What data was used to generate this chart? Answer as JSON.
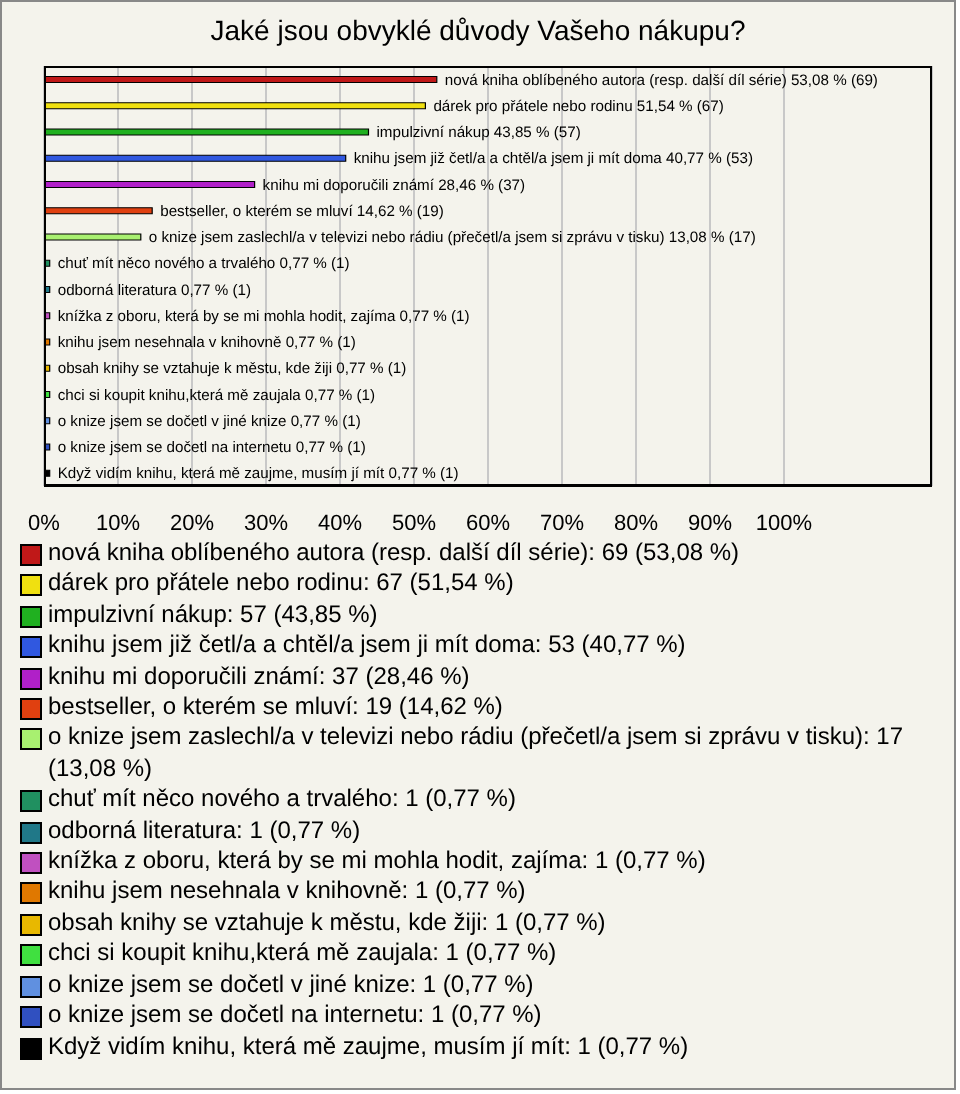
{
  "chart_data": [
    {
      "type": "bar",
      "orientation": "horizontal",
      "title": "Jaké jsou obvyklé důvody Vašeho nákupu?",
      "categories": [
        "nová kniha oblíbeného autora (resp. další díl série)",
        "dárek pro přátele nebo rodinu",
        "impulzivní nákup",
        "knihu jsem již četl/a a chtěl/a jsem ji mít doma",
        "knihu mi doporučili známí",
        "bestseller, o kterém se mluví",
        "o knize jsem zaslechl/a v televizi nebo rádiu (přečetl/a jsem si zprávu v tisku)",
        "chuť mít něco nového a trvalého",
        "odborná literatura",
        "knížka z oboru, která by se mi mohla hodit, zajíma",
        "knihu jsem nesehnala v knihovně",
        "obsah knihy se vztahuje k městu, kde žiji",
        "chci si koupit knihu,která mě zaujala",
        "o knize jsem se dočetl v jiné knize",
        "o knize jsem se dočetl na internetu",
        "Když vidím knihu, která mě zaujme, musím jí mít"
      ],
      "values": [
        53.08,
        51.54,
        43.85,
        40.77,
        28.46,
        14.62,
        13.08,
        0.77,
        0.77,
        0.77,
        0.77,
        0.77,
        0.77,
        0.77,
        0.77,
        0.77
      ],
      "value_labels": [
        "53,08 % (69)",
        "51,54 % (67)",
        "43,85 % (57)",
        "40,77 % (53)",
        "28,46 % (37)",
        "14,62 % (19)",
        "13,08 % (17)",
        "0,77 % (1)",
        "0,77 % (1)",
        "0,77 % (1)",
        "0,77 % (1)",
        "0,77 % (1)",
        "0,77 % (1)",
        "0,77 % (1)",
        "0,77 % (1)",
        "0,77 % (1)"
      ],
      "colors": [
        "#c01818",
        "#f0e010",
        "#20b020",
        "#3058e0",
        "#b020c8",
        "#e04010",
        "#a8f070",
        "#209060",
        "#207888",
        "#c050c0",
        "#e07800",
        "#e8b800",
        "#40e040",
        "#6090e0",
        "#3050c0",
        "#000000"
      ],
      "xlim": [
        0,
        120
      ],
      "xticks": [
        {
          "value": 0,
          "label": "0%"
        },
        {
          "value": 10,
          "label": "10%"
        },
        {
          "value": 20,
          "label": "20%"
        },
        {
          "value": 30,
          "label": "30%"
        },
        {
          "value": 40,
          "label": "40%"
        },
        {
          "value": 50,
          "label": "50%"
        },
        {
          "value": 60,
          "label": "60%"
        },
        {
          "value": 70,
          "label": "70%"
        },
        {
          "value": 80,
          "label": "80%"
        },
        {
          "value": 90,
          "label": "90%"
        },
        {
          "value": 100,
          "label": "100%"
        }
      ],
      "grid": "x"
    },
    {
      "type": "other",
      "annotations": [
        "nová kniha oblíbeného autora (resp. další díl série): 69 (53,08 %)",
        "dárek pro přátele nebo rodinu: 67 (51,54 %)",
        "impulzivní nákup: 57 (43,85 %)",
        "knihu jsem již četl/a a chtěl/a jsem ji mít doma: 53 (40,77 %)",
        "knihu mi doporučili známí: 37 (28,46 %)",
        "bestseller, o kterém se mluví: 19 (14,62 %)",
        "o knize jsem zaslechl/a v televizi nebo rádiu (přečetl/a jsem si zprávu v tisku): 17 (13,08 %)",
        "chuť mít něco nového a trvalého: 1 (0,77 %)",
        "odborná literatura: 1 (0,77 %)",
        "knížka z oboru, která by se mi mohla hodit, zajíma: 1 (0,77 %)",
        "knihu jsem nesehnala v knihovně: 1 (0,77 %)",
        "obsah knihy se vztahuje k městu, kde žiji: 1 (0,77 %)",
        "chci si koupit knihu,která mě zaujala: 1 (0,77 %)",
        "o knize jsem se dočetl v jiné knize: 1 (0,77 %)",
        "o knize jsem se dočetl na internetu: 1 (0,77 %)",
        "Když vidím knihu, která mě zaujme, musím jí mít: 1 (0,77 %)"
      ]
    }
  ]
}
